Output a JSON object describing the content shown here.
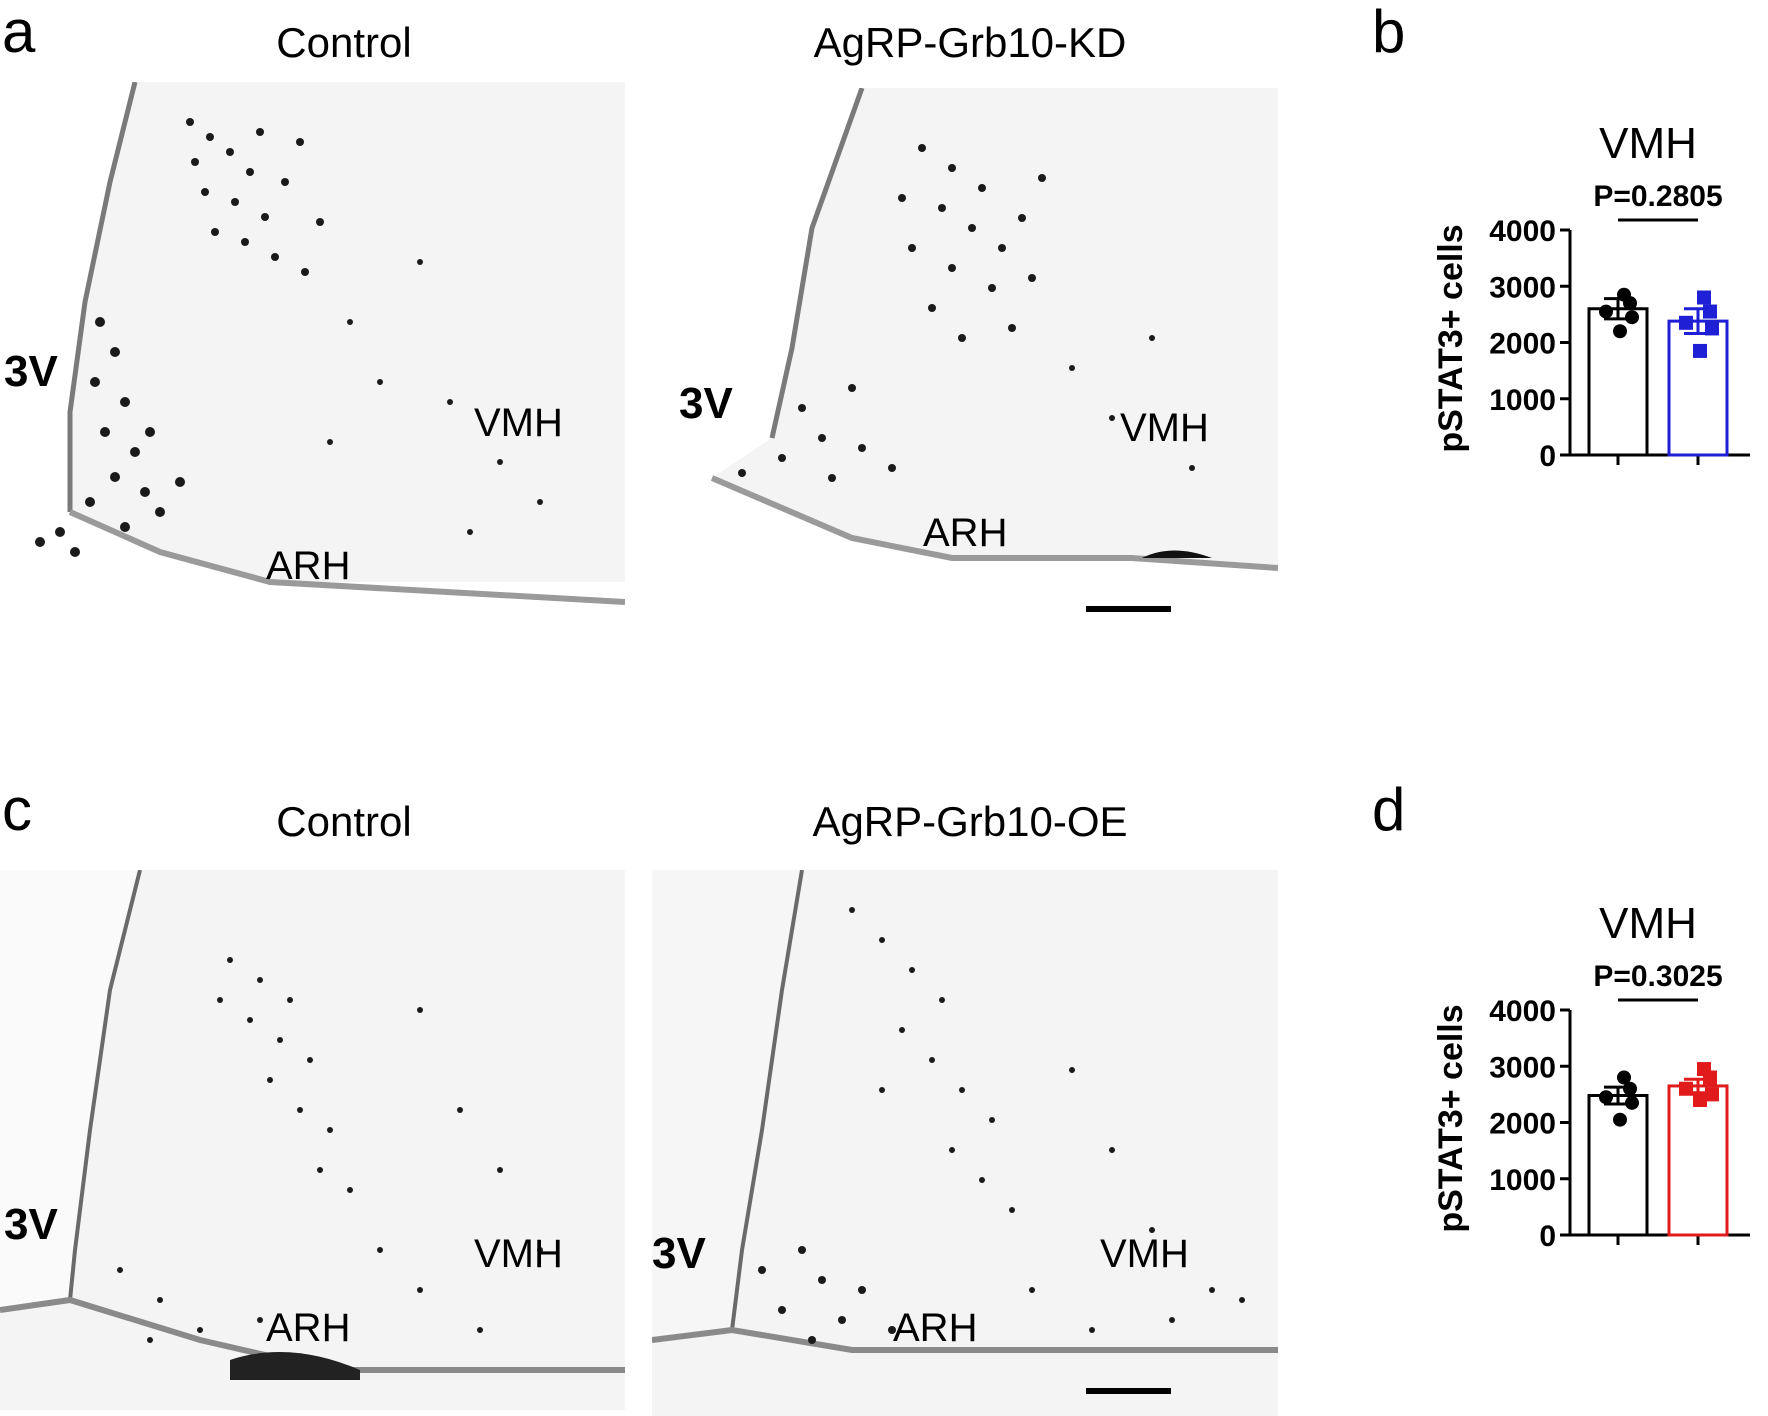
{
  "panels": {
    "a": {
      "letter": "a",
      "left_title": "Control",
      "right_title": "AgRP-Grb10-KD",
      "left_labels": {
        "ventricle": "3V",
        "vmh": "VMH",
        "arh": "ARH"
      },
      "right_labels": {
        "ventricle": "3V",
        "vmh": "VMH",
        "arh": "ARH"
      }
    },
    "b": {
      "letter": "b"
    },
    "c": {
      "letter": "c",
      "left_title": "Control",
      "right_title": "AgRP-Grb10-OE",
      "left_labels": {
        "ventricle": "3V",
        "vmh": "VMH",
        "arh": "ARH"
      },
      "right_labels": {
        "ventricle": "3V",
        "vmh": "VMH",
        "arh": "ARH"
      }
    },
    "d": {
      "letter": "d"
    }
  },
  "chart_data": [
    {
      "type": "bar",
      "panel": "b",
      "title": "VMH",
      "ylabel": "pSTAT3+ cells",
      "xlabel": "",
      "ylim": [
        0,
        4000
      ],
      "yticks": [
        0,
        1000,
        2000,
        3000,
        4000
      ],
      "annotation": "P=0.2805",
      "series": [
        {
          "name": "",
          "mean": 2600,
          "sem": 180,
          "color": "#000000",
          "marker": "circle",
          "points": [
            2850,
            2700,
            2550,
            2450,
            2200
          ]
        },
        {
          "name": "",
          "mean": 2380,
          "sem": 220,
          "color": "#1f1fd6",
          "marker": "square",
          "points": [
            2800,
            2550,
            2350,
            2250,
            1850
          ]
        }
      ]
    },
    {
      "type": "bar",
      "panel": "d",
      "title": "VMH",
      "ylabel": "pSTAT3+ cells",
      "xlabel": "",
      "ylim": [
        0,
        4000
      ],
      "yticks": [
        0,
        1000,
        2000,
        3000,
        4000
      ],
      "annotation": "P=0.3025",
      "series": [
        {
          "name": "",
          "mean": 2480,
          "sem": 150,
          "color": "#000000",
          "marker": "circle",
          "points": [
            2800,
            2600,
            2450,
            2350,
            2050
          ]
        },
        {
          "name": "",
          "mean": 2650,
          "sem": 120,
          "color": "#e11b1b",
          "marker": "square",
          "points": [
            2950,
            2800,
            2600,
            2500,
            2400
          ]
        }
      ]
    }
  ]
}
